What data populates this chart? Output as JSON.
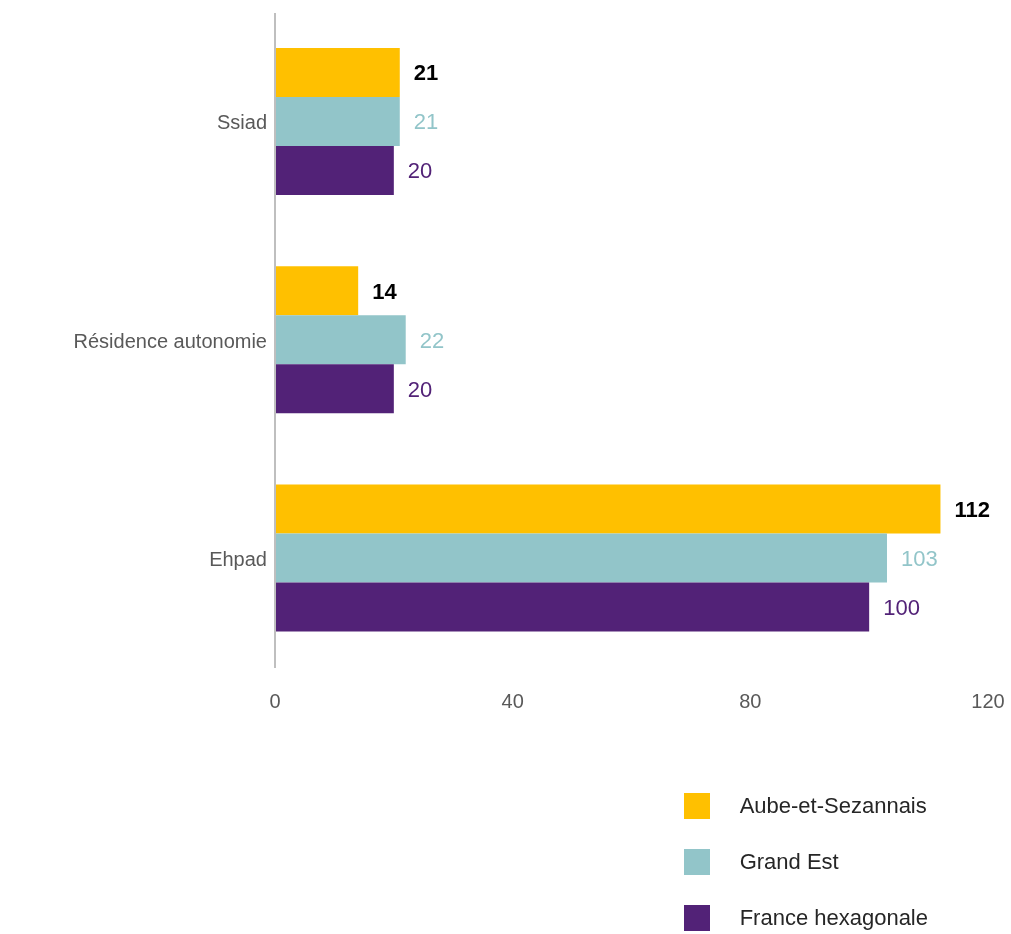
{
  "chart_data": {
    "type": "bar",
    "orientation": "horizontal",
    "categories": [
      "Ssiad",
      "Résidence autonomie",
      "Ehpad"
    ],
    "series": [
      {
        "name": "Aube-et-Sezannais",
        "color": "#ffc000",
        "values": [
          21,
          14,
          112
        ]
      },
      {
        "name": "Grand Est",
        "color": "#92c5c9",
        "values": [
          21,
          22,
          103
        ]
      },
      {
        "name": "France hexagonale",
        "color": "#522277",
        "values": [
          20,
          20,
          100
        ]
      }
    ],
    "xlim": [
      0,
      120
    ],
    "xticks": [
      0,
      40,
      80,
      120
    ],
    "grid": false,
    "legend": "bottom right",
    "data_labels": true
  }
}
